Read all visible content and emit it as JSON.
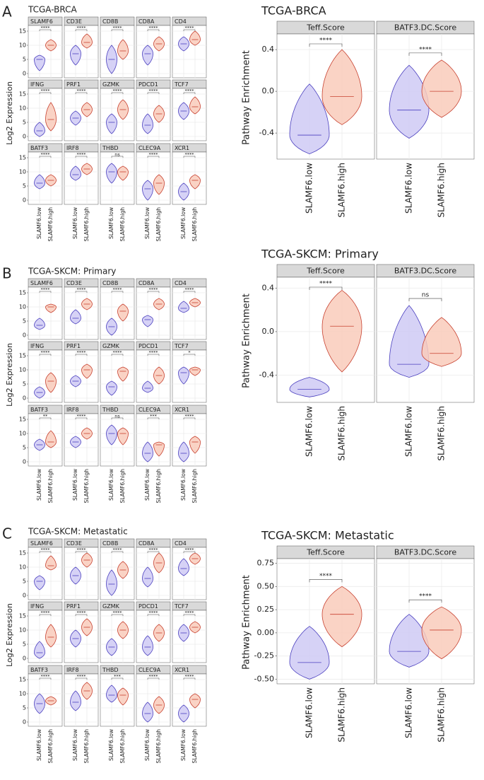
{
  "groups": [
    "SLAMF6.low",
    "SLAMF6.high"
  ],
  "left_ylabel": "Log2 Expression",
  "right_ylabel": "Pathway Enrichment",
  "panels": [
    {
      "letter": "A",
      "left": {
        "title": "TCGA-BRCA",
        "ylim": [
          -1.5,
          17
        ],
        "yticks": [
          0,
          5,
          10,
          15
        ],
        "genes": [
          {
            "name": "SLAMF6",
            "sig": "****",
            "low": [
              1,
              5,
              6.5
            ],
            "high": [
              8,
              10,
              12
            ]
          },
          {
            "name": "CD3E",
            "sig": "****",
            "low": [
              3,
              7,
              10
            ],
            "high": [
              9,
              11,
              14
            ]
          },
          {
            "name": "CD8B",
            "sig": "****",
            "low": [
              0,
              5,
              10
            ],
            "high": [
              5,
              8,
              12
            ]
          },
          {
            "name": "CD8A",
            "sig": "****",
            "low": [
              3,
              7,
              10
            ],
            "high": [
              8,
              10.5,
              13
            ]
          },
          {
            "name": "CD4",
            "sig": "****",
            "low": [
              8,
              10.5,
              13
            ],
            "high": [
              10,
              12,
              15
            ]
          },
          {
            "name": "IFNG",
            "sig": "****",
            "low": [
              0,
              2,
              5
            ],
            "high": [
              2,
              6,
              12
            ]
          },
          {
            "name": "PRF1",
            "sig": "****",
            "low": [
              4,
              6.5,
              9
            ],
            "high": [
              7,
              9.5,
              12
            ]
          },
          {
            "name": "GZMK",
            "sig": "****",
            "low": [
              1,
              5,
              8
            ],
            "high": [
              6,
              9.5,
              13
            ]
          },
          {
            "name": "PDCD1",
            "sig": "****",
            "low": [
              1,
              4,
              8
            ],
            "high": [
              5,
              8,
              11
            ]
          },
          {
            "name": "TCF7",
            "sig": "****",
            "low": [
              6,
              9,
              12
            ],
            "high": [
              8,
              10.5,
              14
            ]
          },
          {
            "name": "BATF3",
            "sig": "****",
            "low": [
              4,
              6,
              9
            ],
            "high": [
              5,
              7,
              9
            ]
          },
          {
            "name": "IRF8",
            "sig": "****",
            "low": [
              7,
              9,
              12
            ],
            "high": [
              9,
              11,
              13
            ]
          },
          {
            "name": "THBD",
            "sig": "ns",
            "low": [
              6,
              10,
              13
            ],
            "high": [
              7,
              10,
              12
            ]
          },
          {
            "name": "CLEC9A",
            "sig": "****",
            "low": [
              0,
              4,
              7
            ],
            "high": [
              2,
              6,
              9
            ]
          },
          {
            "name": "XCR1",
            "sig": "****",
            "low": [
              0,
              3,
              6
            ],
            "high": [
              4,
              7,
              9
            ]
          }
        ]
      },
      "right": {
        "title": "TCGA-BRCA",
        "ylim": [
          -0.65,
          0.55
        ],
        "yticks": [
          -0.4,
          {
            "value": 0,
            "label": "0.0"
          },
          0.4
        ],
        "facets": [
          {
            "name": "Teff.Score",
            "sig": "****",
            "low": [
              -0.6,
              -0.42,
              0.07
            ],
            "high": [
              -0.32,
              -0.05,
              0.4
            ]
          },
          {
            "name": "BATF3.DC.Score",
            "sig": "****",
            "low": [
              -0.45,
              -0.18,
              0.25
            ],
            "high": [
              -0.25,
              0,
              0.3
            ]
          }
        ]
      }
    },
    {
      "letter": "B",
      "left": {
        "title": "TCGA-SKCM: Primary",
        "ylim": [
          -1.5,
          17
        ],
        "yticks": [
          0,
          5,
          10,
          15
        ],
        "genes": [
          {
            "name": "SLAMF6",
            "sig": "****",
            "low": [
              2,
              3.5,
              6
            ],
            "high": [
              8,
              10,
              11
            ]
          },
          {
            "name": "CD3E",
            "sig": "****",
            "low": [
              4,
              6,
              9
            ],
            "high": [
              9,
              11,
              13
            ]
          },
          {
            "name": "CD8B",
            "sig": "****",
            "low": [
              0,
              3,
              6
            ],
            "high": [
              5,
              8.5,
              11
            ]
          },
          {
            "name": "CD8A",
            "sig": "****",
            "low": [
              3,
              5.5,
              7
            ],
            "high": [
              9,
              11,
              13
            ]
          },
          {
            "name": "CD4",
            "sig": "****",
            "low": [
              8,
              9.5,
              12
            ],
            "high": [
              10,
              11.5,
              13
            ]
          },
          {
            "name": "IFNG",
            "sig": "****",
            "low": [
              0,
              2,
              4
            ],
            "high": [
              2,
              6,
              9
            ]
          },
          {
            "name": "PRF1",
            "sig": "****",
            "low": [
              4,
              6,
              8
            ],
            "high": [
              7,
              10,
              12
            ]
          },
          {
            "name": "GZMK",
            "sig": "****",
            "low": [
              1,
              4,
              6
            ],
            "high": [
              6,
              9.5,
              11
            ]
          },
          {
            "name": "PDCD1",
            "sig": "****",
            "low": [
              2,
              3.5,
              6
            ],
            "high": [
              5,
              8,
              11
            ]
          },
          {
            "name": "TCF7",
            "sig": "*",
            "low": [
              5,
              9,
              11
            ],
            "high": [
              8,
              10,
              11
            ]
          },
          {
            "name": "BATF3",
            "sig": "**",
            "low": [
              4,
              6,
              8
            ],
            "high": [
              5,
              7,
              11
            ]
          },
          {
            "name": "IRF8",
            "sig": "****",
            "low": [
              5,
              7,
              9
            ],
            "high": [
              8,
              10,
              12
            ]
          },
          {
            "name": "THBD",
            "sig": "ns",
            "low": [
              6,
              10,
              13
            ],
            "high": [
              6,
              10,
              12
            ]
          },
          {
            "name": "CLEC9A",
            "sig": "***",
            "low": [
              0,
              3,
              7
            ],
            "high": [
              2,
              6,
              7
            ]
          },
          {
            "name": "XCR1",
            "sig": "****",
            "low": [
              0,
              3,
              7
            ],
            "high": [
              3,
              7,
              9
            ]
          }
        ]
      },
      "right": {
        "title": "TCGA-SKCM: Primary",
        "ylim": [
          -0.65,
          0.5
        ],
        "yticks": [
          -0.4,
          {
            "value": 0,
            "label": "0.0"
          },
          0.4
        ],
        "facets": [
          {
            "name": "Teff.Score",
            "sig": "****",
            "low": [
              -0.6,
              -0.53,
              -0.42
            ],
            "high": [
              -0.37,
              0.05,
              0.38
            ]
          },
          {
            "name": "BATF3.DC.Score",
            "sig": "ns",
            "low": [
              -0.42,
              -0.3,
              0.24
            ],
            "high": [
              -0.32,
              -0.2,
              0.13
            ]
          }
        ]
      }
    },
    {
      "letter": "C",
      "left": {
        "title": "TCGA-SKCM: Metastatic",
        "ylim": [
          -1.5,
          17
        ],
        "yticks": [
          0,
          5,
          10,
          15
        ],
        "genes": [
          {
            "name": "SLAMF6",
            "sig": "****",
            "low": [
              2,
              5,
              7
            ],
            "high": [
              9,
              10.5,
              14
            ]
          },
          {
            "name": "CD3E",
            "sig": "****",
            "low": [
              4,
              7,
              10
            ],
            "high": [
              10,
              12.5,
              15
            ]
          },
          {
            "name": "CD8B",
            "sig": "****",
            "low": [
              0,
              4,
              9
            ],
            "high": [
              6,
              9,
              12
            ]
          },
          {
            "name": "CD8A",
            "sig": "****",
            "low": [
              3,
              6,
              10
            ],
            "high": [
              8,
              11.5,
              15
            ]
          },
          {
            "name": "CD4",
            "sig": "****",
            "low": [
              7,
              9.5,
              13
            ],
            "high": [
              11,
              13,
              15
            ]
          },
          {
            "name": "IFNG",
            "sig": "****",
            "low": [
              0,
              2,
              6
            ],
            "high": [
              4,
              7.5,
              12
            ]
          },
          {
            "name": "PRF1",
            "sig": "****",
            "low": [
              4,
              7,
              10
            ],
            "high": [
              8,
              11,
              14
            ]
          },
          {
            "name": "GZMK",
            "sig": "****",
            "low": [
              1,
              4,
              7
            ],
            "high": [
              7,
              10,
              13
            ]
          },
          {
            "name": "PDCD1",
            "sig": "****",
            "low": [
              1,
              4,
              8
            ],
            "high": [
              6,
              9,
              12
            ]
          },
          {
            "name": "TCF7",
            "sig": "****",
            "low": [
              6,
              9,
              12
            ],
            "high": [
              9,
              11,
              13
            ]
          },
          {
            "name": "BATF3",
            "sig": "****",
            "low": [
              3,
              6.5,
              10
            ],
            "high": [
              6,
              7.5,
              9
            ]
          },
          {
            "name": "IRF8",
            "sig": "****",
            "low": [
              4,
              7,
              11
            ],
            "high": [
              8,
              11,
              14
            ]
          },
          {
            "name": "THBD",
            "sig": "***",
            "low": [
              7,
              9.5,
              13
            ],
            "high": [
              6,
              9.5,
              12
            ]
          },
          {
            "name": "CLEC9A",
            "sig": "****",
            "low": [
              0,
              3,
              7
            ],
            "high": [
              3,
              6,
              9
            ]
          },
          {
            "name": "XCR1",
            "sig": "****",
            "low": [
              0,
              3,
              6
            ],
            "high": [
              5,
              8,
              10
            ]
          }
        ]
      },
      "right": {
        "title": "TCGA-SKCM: Metastatic",
        "ylim": [
          -0.55,
          0.8
        ],
        "yticks": [
          {
            "value": -0.5,
            "label": "-0.50"
          },
          -0.25,
          {
            "value": 0,
            "label": "0.00"
          },
          0.25,
          {
            "value": 0.5,
            "label": "0.50"
          },
          0.75
        ],
        "facets": [
          {
            "name": "Teff.Score",
            "sig": "****",
            "low": [
              -0.5,
              -0.32,
              0.07
            ],
            "high": [
              -0.15,
              0.2,
              0.5
            ]
          },
          {
            "name": "BATF3.DC.Score",
            "sig": "****",
            "low": [
              -0.37,
              -0.2,
              0.2
            ],
            "high": [
              -0.28,
              0.03,
              0.28
            ]
          }
        ]
      }
    }
  ]
}
